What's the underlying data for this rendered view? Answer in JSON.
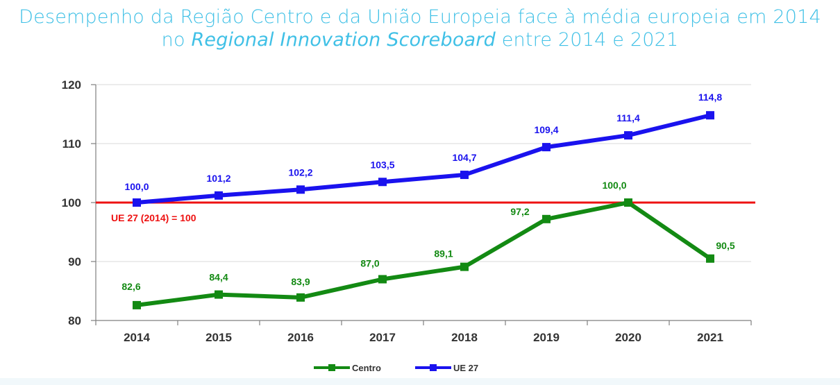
{
  "title": {
    "line1": "Desempenho da Região Centro e da União Europeia face à média europeia em 2014",
    "line2_prefix": "no ",
    "line2_italic": "Regional Innovation Scoreboard",
    "line2_suffix": " entre 2014 e 2021"
  },
  "chart_data": {
    "type": "line",
    "categories": [
      "2014",
      "2015",
      "2016",
      "2017",
      "2018",
      "2019",
      "2020",
      "2021"
    ],
    "series": [
      {
        "name": "Centro",
        "color": "#138a13",
        "values": [
          82.6,
          84.4,
          83.9,
          87.0,
          89.1,
          97.2,
          100.0,
          90.5
        ],
        "labels": [
          "82,6",
          "84,4",
          "83,9",
          "87,0",
          "89,1",
          "97,2",
          "100,0",
          "90,5"
        ]
      },
      {
        "name": "UE 27",
        "color": "#1a12ee",
        "values": [
          100.0,
          101.2,
          102.2,
          103.5,
          104.7,
          109.4,
          111.4,
          114.8
        ],
        "labels": [
          "100,0",
          "101,2",
          "102,2",
          "103,5",
          "104,7",
          "109,4",
          "111,4",
          "114,8"
        ]
      }
    ],
    "reference_line": {
      "value": 100,
      "label": "UE 27 (2014) = 100",
      "color": "#ee1111"
    },
    "yticks": [
      "80",
      "90",
      "100",
      "110",
      "120"
    ],
    "ylim": [
      80,
      120
    ],
    "grid": true,
    "legend_position": "bottom"
  }
}
